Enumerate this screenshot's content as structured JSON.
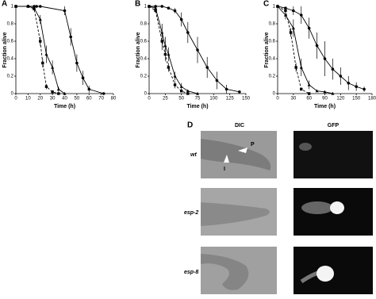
{
  "chart_data": [
    {
      "type": "line",
      "label": "A",
      "xlabel": "Time (h)",
      "ylabel": "Fraction alive",
      "xlim": [
        0,
        80
      ],
      "xticks": [
        0,
        10,
        20,
        30,
        40,
        50,
        60,
        70,
        80
      ],
      "ylim": [
        0,
        1
      ],
      "yticks": [
        0,
        0.2,
        0.4,
        0.6,
        0.8,
        1
      ],
      "series": [
        {
          "color": "#000",
          "marker": "circle",
          "dashed": false,
          "x": [
            0,
            10,
            15,
            17,
            20,
            40,
            45,
            50,
            55,
            60,
            72
          ],
          "values": [
            1,
            1,
            1,
            1,
            1,
            0.95,
            0.65,
            0.35,
            0.18,
            0.05,
            0
          ],
          "errors": [
            0,
            0,
            0,
            0,
            0,
            0.05,
            0.1,
            0.1,
            0.08,
            0.04,
            0
          ]
        },
        {
          "color": "#000",
          "marker": "triangle",
          "dashed": false,
          "x": [
            0,
            10,
            15,
            20,
            25,
            30,
            35,
            40
          ],
          "values": [
            1,
            1,
            0.98,
            0.85,
            0.45,
            0.3,
            0.05,
            0
          ],
          "errors": [
            0,
            0,
            0,
            0.05,
            0.1,
            0.08,
            0.03,
            0
          ]
        },
        {
          "color": "#000",
          "marker": "square",
          "dashed": true,
          "x": [
            0,
            10,
            15,
            20,
            22,
            25,
            30,
            35
          ],
          "values": [
            1,
            1,
            0.97,
            0.6,
            0.35,
            0.08,
            0.02,
            0
          ],
          "errors": [
            0,
            0,
            0,
            0.05,
            0.05,
            0.03,
            0,
            0
          ]
        }
      ]
    },
    {
      "type": "line",
      "label": "B",
      "xlabel": "Time (h)",
      "ylabel": "Fraction alive",
      "xlim": [
        0,
        150
      ],
      "xticks": [
        0,
        25,
        50,
        75,
        100,
        125,
        150
      ],
      "ylim": [
        0,
        1
      ],
      "yticks": [
        0,
        0.2,
        0.4,
        0.6,
        0.8,
        1
      ],
      "series": [
        {
          "color": "#000",
          "marker": "circle",
          "dashed": false,
          "x": [
            0,
            10,
            20,
            30,
            40,
            50,
            60,
            75,
            90,
            105,
            120,
            140
          ],
          "values": [
            1,
            1,
            1,
            0.98,
            0.95,
            0.85,
            0.7,
            0.5,
            0.3,
            0.15,
            0.05,
            0.02
          ],
          "errors": [
            0,
            0,
            0,
            0,
            0.03,
            0.08,
            0.12,
            0.15,
            0.12,
            0.1,
            0.05,
            0
          ]
        },
        {
          "color": "#000",
          "marker": "triangle",
          "dashed": false,
          "x": [
            0,
            10,
            20,
            25,
            30,
            40,
            50,
            60,
            75
          ],
          "values": [
            1,
            0.98,
            0.7,
            0.55,
            0.45,
            0.2,
            0.08,
            0.03,
            0
          ],
          "errors": [
            0,
            0,
            0.1,
            0.1,
            0.08,
            0.05,
            0.04,
            0,
            0
          ]
        },
        {
          "color": "#000",
          "marker": "square",
          "dashed": true,
          "x": [
            0,
            10,
            20,
            25,
            30,
            40,
            50,
            60
          ],
          "values": [
            1,
            0.95,
            0.6,
            0.45,
            0.3,
            0.1,
            0.03,
            0
          ],
          "errors": [
            0,
            0,
            0.1,
            0.08,
            0.05,
            0.04,
            0,
            0
          ]
        }
      ]
    },
    {
      "type": "line",
      "label": "C",
      "xlabel": "Time (h)",
      "ylabel": "Fraction alive",
      "xlim": [
        0,
        180
      ],
      "xticks": [
        0,
        30,
        60,
        90,
        120,
        150,
        180
      ],
      "ylim": [
        0,
        1
      ],
      "yticks": [
        0,
        0.2,
        0.4,
        0.6,
        0.8,
        1
      ],
      "series": [
        {
          "color": "#000",
          "marker": "circle",
          "dashed": false,
          "x": [
            0,
            15,
            30,
            45,
            60,
            75,
            90,
            105,
            120,
            135,
            150,
            165
          ],
          "values": [
            1,
            0.98,
            0.95,
            0.9,
            0.75,
            0.55,
            0.4,
            0.28,
            0.2,
            0.12,
            0.08,
            0.05
          ],
          "errors": [
            0,
            0,
            0.05,
            0.1,
            0.12,
            0.15,
            0.2,
            0.12,
            0.1,
            0.08,
            0.05,
            0.03
          ]
        },
        {
          "color": "#000",
          "marker": "triangle",
          "dashed": false,
          "x": [
            0,
            15,
            30,
            45,
            60,
            75,
            90,
            105
          ],
          "values": [
            1,
            0.9,
            0.75,
            0.3,
            0.1,
            0.03,
            0.02,
            0
          ],
          "errors": [
            0,
            0.05,
            0.1,
            0.1,
            0.05,
            0,
            0,
            0
          ]
        },
        {
          "color": "#000",
          "marker": "square",
          "dashed": true,
          "x": [
            0,
            15,
            25,
            35,
            45,
            60
          ],
          "values": [
            1,
            0.95,
            0.7,
            0.3,
            0.05,
            0
          ],
          "errors": [
            0,
            0,
            0.05,
            0.05,
            0,
            0
          ]
        }
      ]
    }
  ],
  "panel_d": {
    "label": "D",
    "columns": [
      "DIC",
      "GFP"
    ],
    "rows": [
      "wt",
      "esp-2",
      "esp-8"
    ],
    "annotations": [
      "P",
      "I"
    ]
  }
}
